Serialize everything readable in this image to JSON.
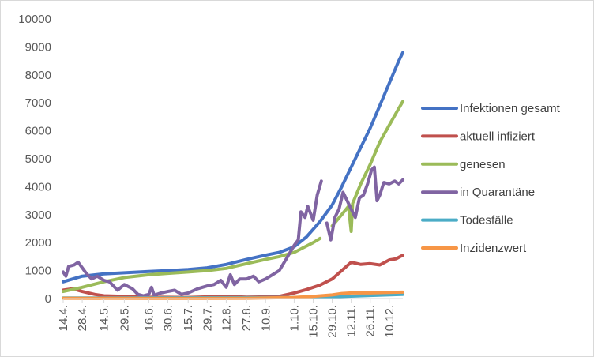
{
  "chart_data": {
    "type": "line",
    "title": "",
    "xlabel": "",
    "ylabel": "",
    "ylim": [
      0,
      10000
    ],
    "yticks": [
      0,
      1000,
      2000,
      3000,
      4000,
      5000,
      6000,
      7000,
      8000,
      9000,
      10000
    ],
    "grid": false,
    "legend_position": "right",
    "x_start_date": "2020-04-14",
    "x_end_date": "2020-12-20",
    "x_tick_labels": [
      "14.4.",
      "28.4.",
      "14.5.",
      "29.5.",
      "16.6.",
      "30.6.",
      "15.7.",
      "29.7.",
      "12.8.",
      "27.8.",
      "10.9.",
      "1.10.",
      "15.10.",
      "29.10.",
      "12.11.",
      "26.11.",
      "10.12."
    ],
    "x_tick_dates": [
      "2020-04-14",
      "2020-04-28",
      "2020-05-14",
      "2020-05-29",
      "2020-06-16",
      "2020-06-30",
      "2020-07-15",
      "2020-07-29",
      "2020-08-12",
      "2020-08-27",
      "2020-09-10",
      "2020-10-01",
      "2020-10-15",
      "2020-10-29",
      "2020-11-12",
      "2020-11-26",
      "2020-12-10"
    ],
    "series": [
      {
        "name": "Infektionen gesamt",
        "color": "#4472c4",
        "points": [
          [
            "2020-04-14",
            600
          ],
          [
            "2020-04-21",
            700
          ],
          [
            "2020-04-28",
            800
          ],
          [
            "2020-05-14",
            880
          ],
          [
            "2020-05-29",
            920
          ],
          [
            "2020-06-16",
            970
          ],
          [
            "2020-06-30",
            1000
          ],
          [
            "2020-07-15",
            1040
          ],
          [
            "2020-07-29",
            1100
          ],
          [
            "2020-08-12",
            1220
          ],
          [
            "2020-08-27",
            1400
          ],
          [
            "2020-09-10",
            1550
          ],
          [
            "2020-09-20",
            1650
          ],
          [
            "2020-10-01",
            1850
          ],
          [
            "2020-10-10",
            2200
          ],
          [
            "2020-10-20",
            2750
          ],
          [
            "2020-10-29",
            3350
          ],
          [
            "2020-11-05",
            4000
          ],
          [
            "2020-11-12",
            4700
          ],
          [
            "2020-11-19",
            5400
          ],
          [
            "2020-11-26",
            6100
          ],
          [
            "2020-12-03",
            6900
          ],
          [
            "2020-12-10",
            7700
          ],
          [
            "2020-12-17",
            8500
          ],
          [
            "2020-12-20",
            8800
          ]
        ]
      },
      {
        "name": "aktuell infiziert",
        "color": "#c0504d",
        "points": [
          [
            "2020-04-14",
            300
          ],
          [
            "2020-04-21",
            350
          ],
          [
            "2020-04-28",
            250
          ],
          [
            "2020-05-07",
            150
          ],
          [
            "2020-05-14",
            100
          ],
          [
            "2020-05-29",
            80
          ],
          [
            "2020-06-16",
            50
          ],
          [
            "2020-07-15",
            40
          ],
          [
            "2020-08-12",
            80
          ],
          [
            "2020-08-27",
            50
          ],
          [
            "2020-09-10",
            60
          ],
          [
            "2020-09-20",
            80
          ],
          [
            "2020-10-01",
            200
          ],
          [
            "2020-10-10",
            320
          ],
          [
            "2020-10-20",
            480
          ],
          [
            "2020-10-29",
            700
          ],
          [
            "2020-11-05",
            1000
          ],
          [
            "2020-11-12",
            1300
          ],
          [
            "2020-11-19",
            1220
          ],
          [
            "2020-11-26",
            1250
          ],
          [
            "2020-12-03",
            1200
          ],
          [
            "2020-12-10",
            1380
          ],
          [
            "2020-12-15",
            1420
          ],
          [
            "2020-12-20",
            1550
          ]
        ]
      },
      {
        "name": "genesen",
        "color": "#9bbb59",
        "points": [
          [
            "2020-04-14",
            250
          ],
          [
            "2020-04-28",
            400
          ],
          [
            "2020-05-14",
            600
          ],
          [
            "2020-05-29",
            750
          ],
          [
            "2020-06-16",
            850
          ],
          [
            "2020-06-30",
            900
          ],
          [
            "2020-07-15",
            950
          ],
          [
            "2020-07-29",
            1000
          ],
          [
            "2020-08-12",
            1080
          ],
          [
            "2020-08-27",
            1250
          ],
          [
            "2020-09-10",
            1400
          ],
          [
            "2020-09-20",
            1500
          ],
          [
            "2020-10-01",
            1650
          ],
          [
            "2020-10-15",
            2000
          ],
          [
            "2020-10-20",
            2150
          ]
        ]
      },
      {
        "name": "genesen",
        "color": "#9bbb59",
        "points": [
          [
            "2020-10-29",
            2600
          ],
          [
            "2020-11-05",
            3000
          ],
          [
            "2020-11-10",
            3300
          ],
          [
            "2020-11-12",
            2400
          ],
          [
            "2020-11-13",
            3400
          ],
          [
            "2020-11-19",
            4100
          ],
          [
            "2020-11-26",
            4800
          ],
          [
            "2020-12-03",
            5600
          ],
          [
            "2020-12-10",
            6200
          ],
          [
            "2020-12-17",
            6800
          ],
          [
            "2020-12-20",
            7050
          ]
        ]
      },
      {
        "name": "in Quarantäne",
        "color": "#8064a2",
        "points": [
          [
            "2020-04-14",
            950
          ],
          [
            "2020-04-16",
            800
          ],
          [
            "2020-04-18",
            1150
          ],
          [
            "2020-04-22",
            1200
          ],
          [
            "2020-04-25",
            1300
          ],
          [
            "2020-04-28",
            1100
          ],
          [
            "2020-05-01",
            900
          ],
          [
            "2020-05-05",
            700
          ],
          [
            "2020-05-09",
            800
          ],
          [
            "2020-05-14",
            650
          ],
          [
            "2020-05-18",
            600
          ],
          [
            "2020-05-24",
            300
          ],
          [
            "2020-05-29",
            500
          ],
          [
            "2020-06-04",
            350
          ],
          [
            "2020-06-08",
            150
          ],
          [
            "2020-06-12",
            100
          ],
          [
            "2020-06-16",
            150
          ],
          [
            "2020-06-18",
            400
          ],
          [
            "2020-06-20",
            120
          ],
          [
            "2020-06-25",
            200
          ],
          [
            "2020-06-30",
            250
          ],
          [
            "2020-07-05",
            300
          ],
          [
            "2020-07-10",
            150
          ],
          [
            "2020-07-15",
            200
          ],
          [
            "2020-07-22",
            350
          ],
          [
            "2020-07-29",
            450
          ],
          [
            "2020-08-03",
            500
          ],
          [
            "2020-08-08",
            650
          ],
          [
            "2020-08-12",
            400
          ],
          [
            "2020-08-15",
            850
          ],
          [
            "2020-08-18",
            500
          ],
          [
            "2020-08-22",
            700
          ],
          [
            "2020-08-27",
            700
          ],
          [
            "2020-09-01",
            800
          ],
          [
            "2020-09-05",
            600
          ],
          [
            "2020-09-10",
            700
          ],
          [
            "2020-09-15",
            850
          ],
          [
            "2020-09-20",
            1000
          ],
          [
            "2020-09-25",
            1400
          ],
          [
            "2020-10-01",
            1900
          ],
          [
            "2020-10-04",
            2100
          ],
          [
            "2020-10-06",
            3100
          ],
          [
            "2020-10-09",
            2900
          ],
          [
            "2020-10-11",
            3300
          ],
          [
            "2020-10-15",
            2800
          ],
          [
            "2020-10-18",
            3700
          ],
          [
            "2020-10-21",
            4200
          ]
        ]
      },
      {
        "name": "in Quarantäne",
        "color": "#8064a2",
        "points": [
          [
            "2020-10-25",
            2700
          ],
          [
            "2020-10-28",
            2100
          ],
          [
            "2020-10-31",
            2900
          ],
          [
            "2020-11-03",
            3200
          ],
          [
            "2020-11-06",
            3800
          ],
          [
            "2020-11-09",
            3500
          ],
          [
            "2020-11-12",
            3200
          ],
          [
            "2020-11-15",
            2900
          ],
          [
            "2020-11-18",
            3600
          ],
          [
            "2020-11-21",
            3700
          ],
          [
            "2020-11-24",
            4100
          ],
          [
            "2020-11-27",
            4600
          ],
          [
            "2020-11-29",
            4700
          ],
          [
            "2020-12-01",
            3500
          ],
          [
            "2020-12-03",
            3700
          ],
          [
            "2020-12-06",
            4150
          ],
          [
            "2020-12-10",
            4100
          ],
          [
            "2020-12-14",
            4200
          ],
          [
            "2020-12-17",
            4100
          ],
          [
            "2020-12-20",
            4250
          ]
        ]
      },
      {
        "name": "Todesfälle",
        "color": "#4bacc6",
        "points": [
          [
            "2020-04-14",
            20
          ],
          [
            "2020-06-16",
            25
          ],
          [
            "2020-08-27",
            30
          ],
          [
            "2020-10-01",
            40
          ],
          [
            "2020-10-29",
            60
          ],
          [
            "2020-11-26",
            110
          ],
          [
            "2020-12-20",
            150
          ]
        ]
      },
      {
        "name": "Inzidenzwert",
        "color": "#f79646",
        "points": [
          [
            "2020-04-14",
            10
          ],
          [
            "2020-06-16",
            5
          ],
          [
            "2020-08-27",
            10
          ],
          [
            "2020-10-01",
            40
          ],
          [
            "2020-10-15",
            80
          ],
          [
            "2020-10-29",
            130
          ],
          [
            "2020-11-05",
            180
          ],
          [
            "2020-11-12",
            200
          ],
          [
            "2020-11-26",
            200
          ],
          [
            "2020-12-10",
            220
          ],
          [
            "2020-12-20",
            230
          ]
        ]
      }
    ],
    "legend": [
      {
        "name": "Infektionen gesamt",
        "color": "#4472c4"
      },
      {
        "name": "aktuell infiziert",
        "color": "#c0504d"
      },
      {
        "name": "genesen",
        "color": "#9bbb59"
      },
      {
        "name": "in Quarantäne",
        "color": "#8064a2"
      },
      {
        "name": "Todesfälle",
        "color": "#4bacc6"
      },
      {
        "name": "Inzidenzwert",
        "color": "#f79646"
      }
    ]
  }
}
